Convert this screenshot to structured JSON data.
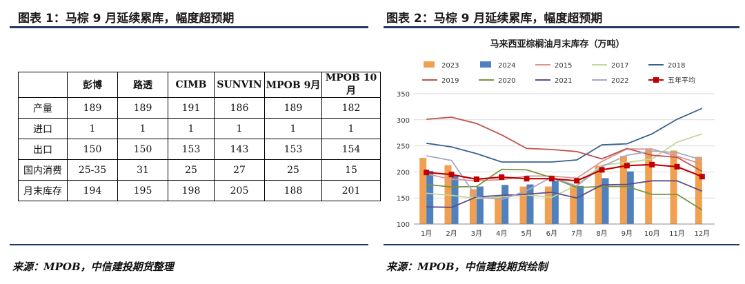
{
  "left": {
    "title": "图表 1：马棕 9 月延续累库，幅度超预期",
    "source": "来源：MPOB，中信建投期货整理",
    "table": {
      "headers": [
        "",
        "彭博",
        "路透",
        "CIMB",
        "SUNVIN",
        "MPOB 9月",
        "MPOB 10月"
      ],
      "rows": [
        [
          "产量",
          "189",
          "189",
          "191",
          "186",
          "189",
          "182"
        ],
        [
          "进口",
          "1",
          "1",
          "1",
          "1",
          "1",
          "1"
        ],
        [
          "出口",
          "150",
          "150",
          "153",
          "143",
          "153",
          "154"
        ],
        [
          "国内消费",
          "25-35",
          "31",
          "25",
          "27",
          "25",
          "15"
        ],
        [
          "月末库存",
          "194",
          "195",
          "198",
          "205",
          "188",
          "201"
        ]
      ]
    }
  },
  "right": {
    "title": "图表 2：马棕 9 月延续累库，幅度超预期",
    "source": "来源：MPOB，中信建投期货绘制"
  },
  "chart_data": {
    "type": "bar",
    "title": "马来西亚棕榈油月末库存（万吨）",
    "categories": [
      "1月",
      "2月",
      "3月",
      "4月",
      "5月",
      "6月",
      "7月",
      "8月",
      "9月",
      "10月",
      "11月",
      "12月"
    ],
    "ylim": [
      100,
      350
    ],
    "yticks": [
      100,
      150,
      200,
      250,
      300,
      350
    ],
    "grid": true,
    "legend_position": "top",
    "bar_series": [
      {
        "name": "2023",
        "color": "#f0a050",
        "values": [
          227,
          213,
          167,
          155,
          172,
          172,
          173,
          212,
          231,
          245,
          241,
          229
        ]
      },
      {
        "name": "2024",
        "color": "#4e81bd",
        "values": [
          202,
          192,
          172,
          175,
          176,
          183,
          173,
          188,
          201,
          null,
          null,
          null
        ]
      }
    ],
    "line_series": [
      {
        "name": "2015",
        "color": "#d99694",
        "values": [
          196,
          186,
          183,
          185,
          192,
          192,
          188,
          220,
          244,
          244,
          230,
          215
        ]
      },
      {
        "name": "2017",
        "color": "#c3d69b",
        "values": [
          159,
          155,
          149,
          152,
          156,
          151,
          175,
          213,
          218,
          225,
          257,
          273
        ]
      },
      {
        "name": "2018",
        "color": "#376092",
        "values": [
          255,
          248,
          235,
          219,
          219,
          219,
          223,
          252,
          254,
          273,
          301,
          322
        ]
      },
      {
        "name": "2019",
        "color": "#c0504d",
        "values": [
          301,
          305,
          293,
          271,
          245,
          243,
          239,
          225,
          245,
          232,
          228,
          201
        ]
      },
      {
        "name": "2020",
        "color": "#77933c",
        "values": [
          176,
          171,
          172,
          205,
          204,
          189,
          170,
          172,
          172,
          157,
          157,
          127
        ]
      },
      {
        "name": "2021",
        "color": "#5f4b8b",
        "values": [
          133,
          132,
          152,
          155,
          157,
          161,
          150,
          175,
          176,
          183,
          183,
          163
        ]
      },
      {
        "name": "2022",
        "color": "#a6a6c8",
        "values": [
          231,
          222,
          152,
          147,
          164,
          190,
          173,
          210,
          232,
          240,
          237,
          223
        ]
      },
      {
        "name": "五年平均",
        "color": "#c00000",
        "marker": "square",
        "values": [
          199,
          195,
          186,
          190,
          187,
          187,
          183,
          204,
          212,
          214,
          210,
          191
        ]
      }
    ]
  }
}
